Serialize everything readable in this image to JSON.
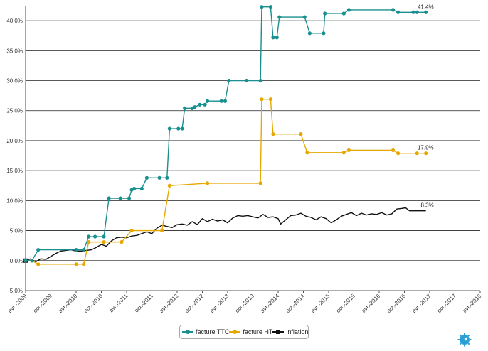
{
  "chart_data": {
    "type": "line",
    "x": [
      "avr.-2009",
      "oct.-2009",
      "avr.-2010",
      "oct.-2010",
      "avr.-2011",
      "oct.-2011",
      "avr.-2012",
      "oct.-2012",
      "avr.-2013",
      "oct.-2013",
      "avr.-2014",
      "oct.-2014",
      "avr.-2015",
      "oct.-2015",
      "avr.-2016",
      "oct.-2016",
      "avr.-2017",
      "oct.-2017",
      "avr.-2018"
    ],
    "ylim": [
      -5,
      42.5
    ],
    "yticks": [
      "-5.0%",
      "0.0%",
      "5.0%",
      "10.0%",
      "15.0%",
      "20.0%",
      "25.0%",
      "30.0%",
      "35.0%",
      "40.0%"
    ],
    "grid": true,
    "legend_position": "bottom-center",
    "series": [
      {
        "name": "facture TTC",
        "color": "#1a8f8f",
        "marker": "circle",
        "end_label": "41.4%",
        "points": [
          [
            0,
            0
          ],
          [
            0.25,
            0
          ],
          [
            0.5,
            1.8
          ],
          [
            2,
            1.8
          ],
          [
            2.3,
            1.8
          ],
          [
            2.5,
            4.0
          ],
          [
            2.75,
            4.0
          ],
          [
            3.1,
            4.0
          ],
          [
            3.3,
            10.4
          ],
          [
            3.75,
            10.4
          ],
          [
            4.1,
            10.4
          ],
          [
            4.2,
            11.8
          ],
          [
            4.3,
            12.0
          ],
          [
            4.6,
            12.0
          ],
          [
            4.8,
            13.8
          ],
          [
            5.3,
            13.8
          ],
          [
            5.6,
            13.8
          ],
          [
            5.7,
            22.0
          ],
          [
            6.05,
            22.0
          ],
          [
            6.2,
            22.0
          ],
          [
            6.3,
            25.4
          ],
          [
            6.6,
            25.4
          ],
          [
            6.7,
            25.6
          ],
          [
            6.9,
            26.0
          ],
          [
            7.1,
            26.0
          ],
          [
            7.2,
            26.6
          ],
          [
            7.75,
            26.6
          ],
          [
            7.9,
            26.6
          ],
          [
            8.05,
            30.0
          ],
          [
            8.75,
            30.0
          ],
          [
            9.3,
            30.0
          ],
          [
            9.35,
            42.3
          ],
          [
            9.7,
            42.3
          ],
          [
            9.8,
            37.2
          ],
          [
            9.95,
            37.2
          ],
          [
            10.05,
            40.6
          ],
          [
            11.05,
            40.6
          ],
          [
            11.25,
            37.9
          ],
          [
            11.8,
            37.9
          ],
          [
            11.85,
            41.2
          ],
          [
            12.6,
            41.2
          ],
          [
            12.8,
            41.8
          ],
          [
            14.55,
            41.8
          ],
          [
            14.75,
            41.4
          ],
          [
            15.35,
            41.4
          ],
          [
            15.5,
            41.4
          ],
          [
            15.85,
            41.4
          ]
        ]
      },
      {
        "name": "facture HT",
        "color": "#e6a800",
        "marker": "circle",
        "end_label": "17.9%",
        "points": [
          [
            0,
            0
          ],
          [
            0.25,
            0
          ],
          [
            0.5,
            -0.6
          ],
          [
            2,
            -0.6
          ],
          [
            2.3,
            -0.6
          ],
          [
            2.5,
            3.1
          ],
          [
            3.1,
            3.1
          ],
          [
            3.8,
            3.1
          ],
          [
            4.2,
            5.0
          ],
          [
            5.4,
            5.0
          ],
          [
            5.7,
            12.5
          ],
          [
            7.2,
            12.9
          ],
          [
            9.3,
            12.9
          ],
          [
            9.35,
            26.9
          ],
          [
            9.7,
            26.9
          ],
          [
            9.8,
            21.1
          ],
          [
            10.9,
            21.1
          ],
          [
            11.15,
            18.0
          ],
          [
            12.6,
            18.0
          ],
          [
            12.8,
            18.4
          ],
          [
            14.55,
            18.4
          ],
          [
            14.75,
            17.9
          ],
          [
            15.5,
            17.9
          ],
          [
            15.85,
            17.9
          ]
        ]
      },
      {
        "name": "inflation",
        "color": "#111111",
        "marker": "square",
        "end_label": "8.3%",
        "points": [
          [
            0,
            0
          ],
          [
            0.2,
            0.3
          ],
          [
            0.4,
            -0.2
          ],
          [
            0.6,
            0.3
          ],
          [
            0.8,
            0.2
          ],
          [
            1,
            0.7
          ],
          [
            1.2,
            1.2
          ],
          [
            1.4,
            1.6
          ],
          [
            1.6,
            1.7
          ],
          [
            1.8,
            1.8
          ],
          [
            2,
            1.6
          ],
          [
            2.2,
            1.6
          ],
          [
            2.4,
            1.7
          ],
          [
            2.6,
            1.8
          ],
          [
            2.8,
            2.2
          ],
          [
            3,
            2.7
          ],
          [
            3.2,
            2.4
          ],
          [
            3.4,
            3.3
          ],
          [
            3.6,
            3.8
          ],
          [
            3.8,
            3.9
          ],
          [
            4,
            3.8
          ],
          [
            4.2,
            4.1
          ],
          [
            4.4,
            4.2
          ],
          [
            4.6,
            4.5
          ],
          [
            4.8,
            4.8
          ],
          [
            5,
            4.5
          ],
          [
            5.2,
            5.4
          ],
          [
            5.4,
            5.9
          ],
          [
            5.6,
            5.7
          ],
          [
            5.8,
            5.5
          ],
          [
            6,
            6.0
          ],
          [
            6.2,
            6.1
          ],
          [
            6.4,
            5.9
          ],
          [
            6.6,
            6.5
          ],
          [
            6.8,
            6.0
          ],
          [
            7,
            7.0
          ],
          [
            7.2,
            6.5
          ],
          [
            7.4,
            6.9
          ],
          [
            7.6,
            6.6
          ],
          [
            7.8,
            6.8
          ],
          [
            8,
            6.3
          ],
          [
            8.2,
            7.1
          ],
          [
            8.4,
            7.5
          ],
          [
            8.6,
            7.4
          ],
          [
            8.8,
            7.5
          ],
          [
            9,
            7.3
          ],
          [
            9.2,
            7.1
          ],
          [
            9.4,
            7.7
          ],
          [
            9.6,
            7.2
          ],
          [
            9.8,
            7.3
          ],
          [
            10,
            7.0
          ],
          [
            10.1,
            6.1
          ],
          [
            10.3,
            6.8
          ],
          [
            10.5,
            7.5
          ],
          [
            10.7,
            7.6
          ],
          [
            10.9,
            7.9
          ],
          [
            11.1,
            7.4
          ],
          [
            11.3,
            7.2
          ],
          [
            11.5,
            6.8
          ],
          [
            11.7,
            7.3
          ],
          [
            11.9,
            7.0
          ],
          [
            12.1,
            6.3
          ],
          [
            12.3,
            6.8
          ],
          [
            12.5,
            7.4
          ],
          [
            12.7,
            7.7
          ],
          [
            12.9,
            8.0
          ],
          [
            13.1,
            7.5
          ],
          [
            13.3,
            7.9
          ],
          [
            13.5,
            7.6
          ],
          [
            13.7,
            7.8
          ],
          [
            13.9,
            7.7
          ],
          [
            14.1,
            8.0
          ],
          [
            14.3,
            7.6
          ],
          [
            14.5,
            7.8
          ],
          [
            14.7,
            8.6
          ],
          [
            14.9,
            8.7
          ],
          [
            15.05,
            8.8
          ],
          [
            15.2,
            8.3
          ],
          [
            15.5,
            8.3
          ],
          [
            15.85,
            8.3
          ]
        ]
      }
    ]
  }
}
